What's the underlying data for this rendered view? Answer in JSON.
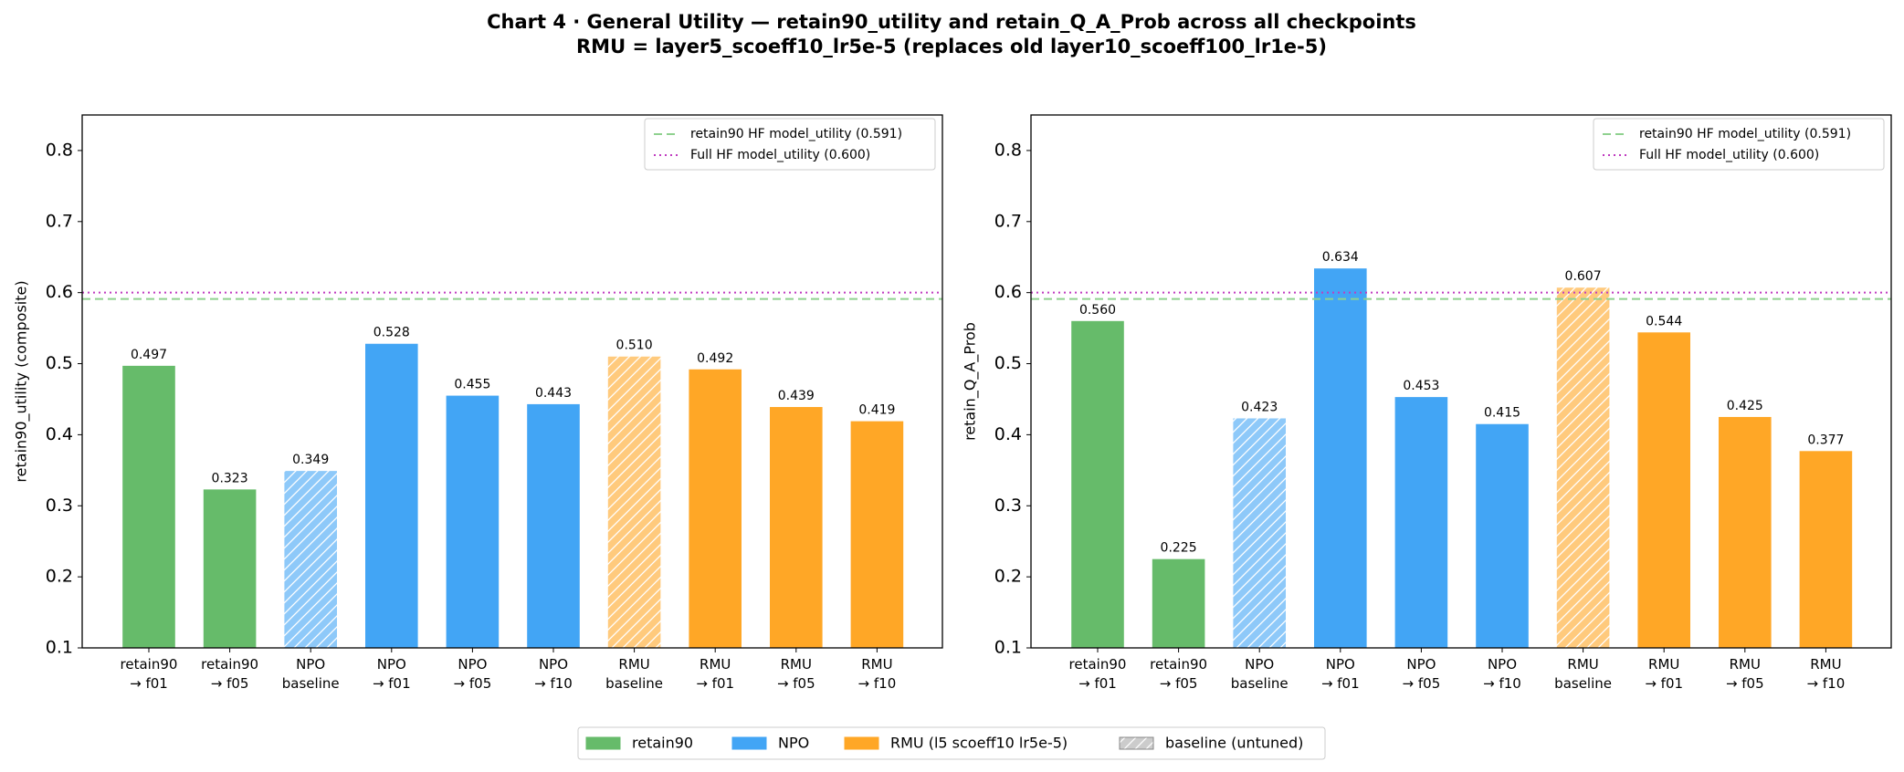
{
  "title": "Chart 4 · General Utility — retain90_utility and retain_Q_A_Prob across all checkpoints",
  "subtitle": "RMU = layer5_scoeff10_lr5e-5 (replaces old layer10_scoeff100_lr1e-5)",
  "legend": [
    {
      "name": "retain90",
      "color": "#66bb6a",
      "hatched": false
    },
    {
      "name": "NPO",
      "color": "#42a5f5",
      "hatched": false
    },
    {
      "name": "RMU (l5 scoeff10 lr5e-5)",
      "color": "#ffa726",
      "hatched": false
    },
    {
      "name": "baseline (untuned)",
      "color": "#aaaaaa",
      "hatched": true
    }
  ],
  "chart_data": [
    {
      "type": "bar",
      "ylabel": "retain90_utility (composite)",
      "categories": [
        "retain90\n→ f01",
        "retain90\n→ f05",
        "NPO\nbaseline",
        "NPO\n→ f01",
        "NPO\n→ f05",
        "NPO\n→ f10",
        "RMU\nbaseline",
        "RMU\n→ f01",
        "RMU\n→ f05",
        "RMU\n→ f10"
      ],
      "values": [
        0.497,
        0.323,
        0.349,
        0.528,
        0.455,
        0.443,
        0.51,
        0.492,
        0.439,
        0.419
      ],
      "value_labels": [
        "0.497",
        "0.323",
        "0.349",
        "0.528",
        "0.455",
        "0.443",
        "0.510",
        "0.492",
        "0.439",
        "0.419"
      ],
      "colors": [
        "#66bb6a",
        "#66bb6a",
        "#42a5f5",
        "#42a5f5",
        "#42a5f5",
        "#42a5f5",
        "#ffa726",
        "#ffa726",
        "#ffa726",
        "#ffa726"
      ],
      "hatched": [
        false,
        false,
        true,
        false,
        false,
        false,
        true,
        false,
        false,
        false
      ],
      "ylim": [
        0.1,
        0.85
      ],
      "yticks": [
        0.1,
        0.2,
        0.3,
        0.4,
        0.5,
        0.6,
        0.7,
        0.8
      ],
      "reference_lines": [
        {
          "label": "retain90 HF model_utility (0.591)",
          "value": 0.591,
          "color": "#8fd18f",
          "style": "dashed"
        },
        {
          "label": "Full HF model_utility (0.600)",
          "value": 0.6,
          "color": "#c03cc0",
          "style": "dotted"
        }
      ]
    },
    {
      "type": "bar",
      "ylabel": "retain_Q_A_Prob",
      "categories": [
        "retain90\n→ f01",
        "retain90\n→ f05",
        "NPO\nbaseline",
        "NPO\n→ f01",
        "NPO\n→ f05",
        "NPO\n→ f10",
        "RMU\nbaseline",
        "RMU\n→ f01",
        "RMU\n→ f05",
        "RMU\n→ f10"
      ],
      "values": [
        0.56,
        0.225,
        0.423,
        0.634,
        0.453,
        0.415,
        0.607,
        0.544,
        0.425,
        0.377
      ],
      "value_labels": [
        "0.560",
        "0.225",
        "0.423",
        "0.634",
        "0.453",
        "0.415",
        "0.607",
        "0.544",
        "0.425",
        "0.377"
      ],
      "colors": [
        "#66bb6a",
        "#66bb6a",
        "#42a5f5",
        "#42a5f5",
        "#42a5f5",
        "#42a5f5",
        "#ffa726",
        "#ffa726",
        "#ffa726",
        "#ffa726"
      ],
      "hatched": [
        false,
        false,
        true,
        false,
        false,
        false,
        true,
        false,
        false,
        false
      ],
      "ylim": [
        0.1,
        0.85
      ],
      "yticks": [
        0.1,
        0.2,
        0.3,
        0.4,
        0.5,
        0.6,
        0.7,
        0.8
      ],
      "reference_lines": [
        {
          "label": "retain90 HF model_utility (0.591)",
          "value": 0.591,
          "color": "#8fd18f",
          "style": "dashed"
        },
        {
          "label": "Full HF model_utility (0.600)",
          "value": 0.6,
          "color": "#c03cc0",
          "style": "dotted"
        }
      ]
    }
  ]
}
